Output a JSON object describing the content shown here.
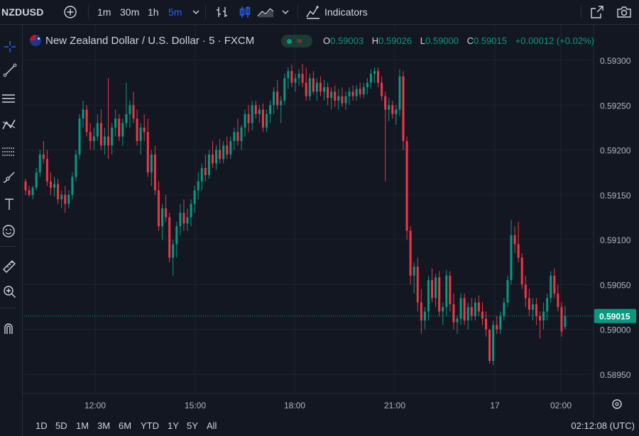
{
  "toolbar": {
    "symbol": "NZDUSD",
    "timeframes": [
      "1m",
      "30m",
      "1h",
      "5m"
    ],
    "active_timeframe": "5m",
    "indicators_label": "Indicators"
  },
  "legend": {
    "title": "New Zealand Dollar / U.S. Dollar · 5 · FXCM",
    "wave": "≈",
    "open_label": "O",
    "open": "0.59003",
    "high_label": "H",
    "high": "0.59026",
    "low_label": "L",
    "low": "0.59000",
    "close_label": "C",
    "close": "0.59015",
    "change": "+0.00012 (+0.02%)"
  },
  "ranges": [
    "1D",
    "5D",
    "1M",
    "3M",
    "6M",
    "YTD",
    "1Y",
    "5Y",
    "All"
  ],
  "clock": "02:12:08 (UTC)",
  "colors": {
    "up": "#089981",
    "down": "#f23645",
    "background": "#131722",
    "active": "#2962ff"
  },
  "left_tools": [
    "crosshair-icon",
    "trendline-icon",
    "horizontal-lines-icon",
    "pattern-icon",
    "fib-icon",
    "brush-icon",
    "text-icon",
    "emoji-icon",
    "ruler-icon",
    "zoom-in-icon",
    "magnet-icon"
  ],
  "chart_data": {
    "type": "candlestick",
    "title": "",
    "y_ticks": [
      "0.59300",
      "0.59250",
      "0.59200",
      "0.59150",
      "0.59100",
      "0.59050",
      "0.59000",
      "0.58950"
    ],
    "x_ticks": [
      "12:00",
      "15:00",
      "18:00",
      "21:00",
      "17",
      "02:00"
    ],
    "ylim": [
      0.58925,
      0.5932
    ],
    "last_price": "0.59015",
    "last_value": 0.59015,
    "up_color": "#089981",
    "down_color": "#f23645",
    "candles": [
      [
        0.59165,
        0.59168,
        0.5915,
        0.59155
      ],
      [
        0.59155,
        0.5916,
        0.59148,
        0.5915
      ],
      [
        0.5915,
        0.5916,
        0.59145,
        0.59158
      ],
      [
        0.59158,
        0.5918,
        0.59155,
        0.59175
      ],
      [
        0.59175,
        0.592,
        0.5917,
        0.59195
      ],
      [
        0.59195,
        0.5921,
        0.59185,
        0.5919
      ],
      [
        0.5919,
        0.592,
        0.5916,
        0.59165
      ],
      [
        0.59165,
        0.59175,
        0.5915,
        0.59158
      ],
      [
        0.59158,
        0.5917,
        0.59148,
        0.59162
      ],
      [
        0.59162,
        0.59168,
        0.5914,
        0.59145
      ],
      [
        0.59145,
        0.59155,
        0.59135,
        0.5915
      ],
      [
        0.5915,
        0.5916,
        0.5913,
        0.5914
      ],
      [
        0.5914,
        0.59155,
        0.59135,
        0.5915
      ],
      [
        0.5915,
        0.59175,
        0.59145,
        0.5917
      ],
      [
        0.5917,
        0.592,
        0.59165,
        0.59195
      ],
      [
        0.59195,
        0.5924,
        0.5919,
        0.59235
      ],
      [
        0.59235,
        0.59255,
        0.59225,
        0.59245
      ],
      [
        0.59245,
        0.5925,
        0.59215,
        0.5922
      ],
      [
        0.5922,
        0.5923,
        0.592,
        0.5921
      ],
      [
        0.5921,
        0.59225,
        0.592,
        0.59215
      ],
      [
        0.59215,
        0.5924,
        0.5921,
        0.5923
      ],
      [
        0.5923,
        0.59245,
        0.592,
        0.59205
      ],
      [
        0.59205,
        0.59225,
        0.59195,
        0.59215
      ],
      [
        0.59215,
        0.5928,
        0.5919,
        0.59205
      ],
      [
        0.59205,
        0.5923,
        0.59195,
        0.59225
      ],
      [
        0.59225,
        0.59245,
        0.59215,
        0.59235
      ],
      [
        0.59235,
        0.5924,
        0.5921,
        0.59215
      ],
      [
        0.59215,
        0.59235,
        0.59205,
        0.5923
      ],
      [
        0.5923,
        0.59275,
        0.59225,
        0.5924
      ],
      [
        0.5924,
        0.59255,
        0.59225,
        0.5925
      ],
      [
        0.5925,
        0.59265,
        0.5923,
        0.59235
      ],
      [
        0.59235,
        0.59245,
        0.59205,
        0.5921
      ],
      [
        0.5921,
        0.5923,
        0.59195,
        0.59225
      ],
      [
        0.59225,
        0.5924,
        0.5921,
        0.5922
      ],
      [
        0.5922,
        0.59235,
        0.5917,
        0.59175
      ],
      [
        0.59175,
        0.592,
        0.5916,
        0.59195
      ],
      [
        0.59195,
        0.59205,
        0.5915,
        0.59155
      ],
      [
        0.59155,
        0.59165,
        0.5911,
        0.59115
      ],
      [
        0.59115,
        0.5914,
        0.591,
        0.59135
      ],
      [
        0.59135,
        0.5915,
        0.5912,
        0.59125
      ],
      [
        0.59125,
        0.5913,
        0.59075,
        0.5908
      ],
      [
        0.5908,
        0.591,
        0.5906,
        0.59095
      ],
      [
        0.59095,
        0.5912,
        0.5908,
        0.59115
      ],
      [
        0.59115,
        0.5914,
        0.59105,
        0.5913
      ],
      [
        0.5913,
        0.59145,
        0.5911,
        0.59118
      ],
      [
        0.59118,
        0.59135,
        0.5911,
        0.59125
      ],
      [
        0.59125,
        0.59145,
        0.59115,
        0.5914
      ],
      [
        0.5914,
        0.5916,
        0.5913,
        0.59155
      ],
      [
        0.59155,
        0.59175,
        0.59145,
        0.59165
      ],
      [
        0.59165,
        0.59185,
        0.59155,
        0.5918
      ],
      [
        0.5918,
        0.59195,
        0.59165,
        0.59172
      ],
      [
        0.59172,
        0.592,
        0.59168,
        0.59195
      ],
      [
        0.59195,
        0.5921,
        0.5918,
        0.59185
      ],
      [
        0.59185,
        0.59205,
        0.59178,
        0.592
      ],
      [
        0.592,
        0.59212,
        0.59185,
        0.5919
      ],
      [
        0.5919,
        0.5921,
        0.59185,
        0.59205
      ],
      [
        0.59205,
        0.59215,
        0.5919,
        0.59195
      ],
      [
        0.59195,
        0.59215,
        0.5919,
        0.5921
      ],
      [
        0.5921,
        0.59225,
        0.592,
        0.5922
      ],
      [
        0.5922,
        0.59235,
        0.59205,
        0.5921
      ],
      [
        0.5921,
        0.59228,
        0.592,
        0.59225
      ],
      [
        0.59225,
        0.59245,
        0.59215,
        0.5924
      ],
      [
        0.5924,
        0.5925,
        0.5922,
        0.5923
      ],
      [
        0.5923,
        0.59255,
        0.59222,
        0.5925
      ],
      [
        0.5925,
        0.59255,
        0.59235,
        0.5924
      ],
      [
        0.5924,
        0.5925,
        0.5923,
        0.59245
      ],
      [
        0.59245,
        0.59252,
        0.5922,
        0.59225
      ],
      [
        0.59225,
        0.59245,
        0.5922,
        0.5924
      ],
      [
        0.5924,
        0.59255,
        0.5923,
        0.5925
      ],
      [
        0.5925,
        0.5927,
        0.5924,
        0.59265
      ],
      [
        0.59265,
        0.59278,
        0.59245,
        0.5925
      ],
      [
        0.5925,
        0.5926,
        0.5923,
        0.59255
      ],
      [
        0.59255,
        0.59285,
        0.5925,
        0.5928
      ],
      [
        0.5928,
        0.59292,
        0.59268,
        0.59288
      ],
      [
        0.59288,
        0.59295,
        0.5927,
        0.59275
      ],
      [
        0.59275,
        0.59285,
        0.59265,
        0.5928
      ],
      [
        0.5928,
        0.5929,
        0.59272,
        0.59285
      ],
      [
        0.59285,
        0.59296,
        0.5927,
        0.59275
      ],
      [
        0.59275,
        0.59292,
        0.59255,
        0.5926
      ],
      [
        0.5926,
        0.59285,
        0.59255,
        0.5928
      ],
      [
        0.5928,
        0.59288,
        0.59262,
        0.59265
      ],
      [
        0.59265,
        0.5928,
        0.59255,
        0.59275
      ],
      [
        0.59275,
        0.59282,
        0.5926,
        0.59265
      ],
      [
        0.59265,
        0.59278,
        0.59255,
        0.5927
      ],
      [
        0.5927,
        0.59275,
        0.5925,
        0.59258
      ],
      [
        0.59258,
        0.5927,
        0.59245,
        0.59265
      ],
      [
        0.59265,
        0.59272,
        0.59248,
        0.59255
      ],
      [
        0.59255,
        0.59268,
        0.59245,
        0.5926
      ],
      [
        0.5926,
        0.5927,
        0.59248,
        0.59252
      ],
      [
        0.59252,
        0.59265,
        0.59245,
        0.5926
      ],
      [
        0.5926,
        0.5927,
        0.5925,
        0.59265
      ],
      [
        0.59265,
        0.59272,
        0.59255,
        0.5926
      ],
      [
        0.5926,
        0.59272,
        0.59255,
        0.59268
      ],
      [
        0.59268,
        0.59275,
        0.59258,
        0.59262
      ],
      [
        0.59262,
        0.59275,
        0.59258,
        0.5927
      ],
      [
        0.5927,
        0.5928,
        0.59262,
        0.59275
      ],
      [
        0.59275,
        0.5929,
        0.59268,
        0.59285
      ],
      [
        0.59285,
        0.59292,
        0.59275,
        0.59288
      ],
      [
        0.59288,
        0.59292,
        0.5927,
        0.59275
      ],
      [
        0.59275,
        0.59282,
        0.59255,
        0.5926
      ],
      [
        0.5926,
        0.59265,
        0.59165,
        0.59245
      ],
      [
        0.59245,
        0.59258,
        0.59232,
        0.5925
      ],
      [
        0.5925,
        0.59255,
        0.59235,
        0.5924
      ],
      [
        0.5924,
        0.5925,
        0.59228,
        0.59245
      ],
      [
        0.59245,
        0.5929,
        0.59238,
        0.59282
      ],
      [
        0.59282,
        0.59288,
        0.592,
        0.5921
      ],
      [
        0.5921,
        0.59215,
        0.591,
        0.5911
      ],
      [
        0.5911,
        0.59115,
        0.5905,
        0.5906
      ],
      [
        0.5906,
        0.59075,
        0.5904,
        0.5907
      ],
      [
        0.5907,
        0.5908,
        0.5902,
        0.5903
      ],
      [
        0.5903,
        0.59045,
        0.58995,
        0.5901
      ],
      [
        0.5901,
        0.59025,
        0.59,
        0.5902
      ],
      [
        0.5902,
        0.5906,
        0.5901,
        0.59055
      ],
      [
        0.59055,
        0.59068,
        0.5903,
        0.59035
      ],
      [
        0.59035,
        0.59062,
        0.59025,
        0.59058
      ],
      [
        0.59058,
        0.59065,
        0.59015,
        0.5902
      ],
      [
        0.5902,
        0.5903,
        0.59005,
        0.59025
      ],
      [
        0.59025,
        0.59066,
        0.59015,
        0.5906
      ],
      [
        0.5906,
        0.59065,
        0.5902,
        0.59028
      ],
      [
        0.59028,
        0.5904,
        0.59,
        0.59008
      ],
      [
        0.59008,
        0.59015,
        0.58995,
        0.59012
      ],
      [
        0.59012,
        0.5904,
        0.59005,
        0.59035
      ],
      [
        0.59035,
        0.5904,
        0.59005,
        0.5901
      ],
      [
        0.5901,
        0.5903,
        0.59,
        0.59025
      ],
      [
        0.59025,
        0.59035,
        0.5901,
        0.59015
      ],
      [
        0.59015,
        0.59035,
        0.5901,
        0.5903
      ],
      [
        0.5903,
        0.59038,
        0.59015,
        0.5902
      ],
      [
        0.5902,
        0.5903,
        0.59005,
        0.59012
      ],
      [
        0.59012,
        0.5902,
        0.58992,
        0.59
      ],
      [
        0.59,
        0.58998,
        0.58962,
        0.58965
      ],
      [
        0.58965,
        0.5901,
        0.5896,
        0.59005
      ],
      [
        0.59005,
        0.59015,
        0.58995,
        0.59
      ],
      [
        0.59,
        0.5902,
        0.58995,
        0.59015
      ],
      [
        0.59015,
        0.59035,
        0.5901,
        0.5903
      ],
      [
        0.5903,
        0.5906,
        0.59025,
        0.59055
      ],
      [
        0.59055,
        0.59122,
        0.5905,
        0.59105
      ],
      [
        0.59105,
        0.59115,
        0.59085,
        0.59095
      ],
      [
        0.59095,
        0.5912,
        0.59075,
        0.5908
      ],
      [
        0.5908,
        0.59085,
        0.59045,
        0.5905
      ],
      [
        0.5905,
        0.5906,
        0.59025,
        0.59035
      ],
      [
        0.59035,
        0.59045,
        0.59015,
        0.59022
      ],
      [
        0.59022,
        0.59035,
        0.5901,
        0.59028
      ],
      [
        0.59028,
        0.59035,
        0.59005,
        0.59015
      ],
      [
        0.59015,
        0.5902,
        0.5899,
        0.5901
      ],
      [
        0.5901,
        0.5903,
        0.59,
        0.5902
      ],
      [
        0.5902,
        0.5904,
        0.5901,
        0.59035
      ],
      [
        0.59035,
        0.59065,
        0.5903,
        0.5906
      ],
      [
        0.5906,
        0.59068,
        0.59035,
        0.5904
      ],
      [
        0.5904,
        0.5905,
        0.5902,
        0.59025
      ],
      [
        0.59025,
        0.5903,
        0.58992,
        0.58998
      ],
      [
        0.59003,
        0.59026,
        0.59,
        0.59015
      ]
    ]
  }
}
